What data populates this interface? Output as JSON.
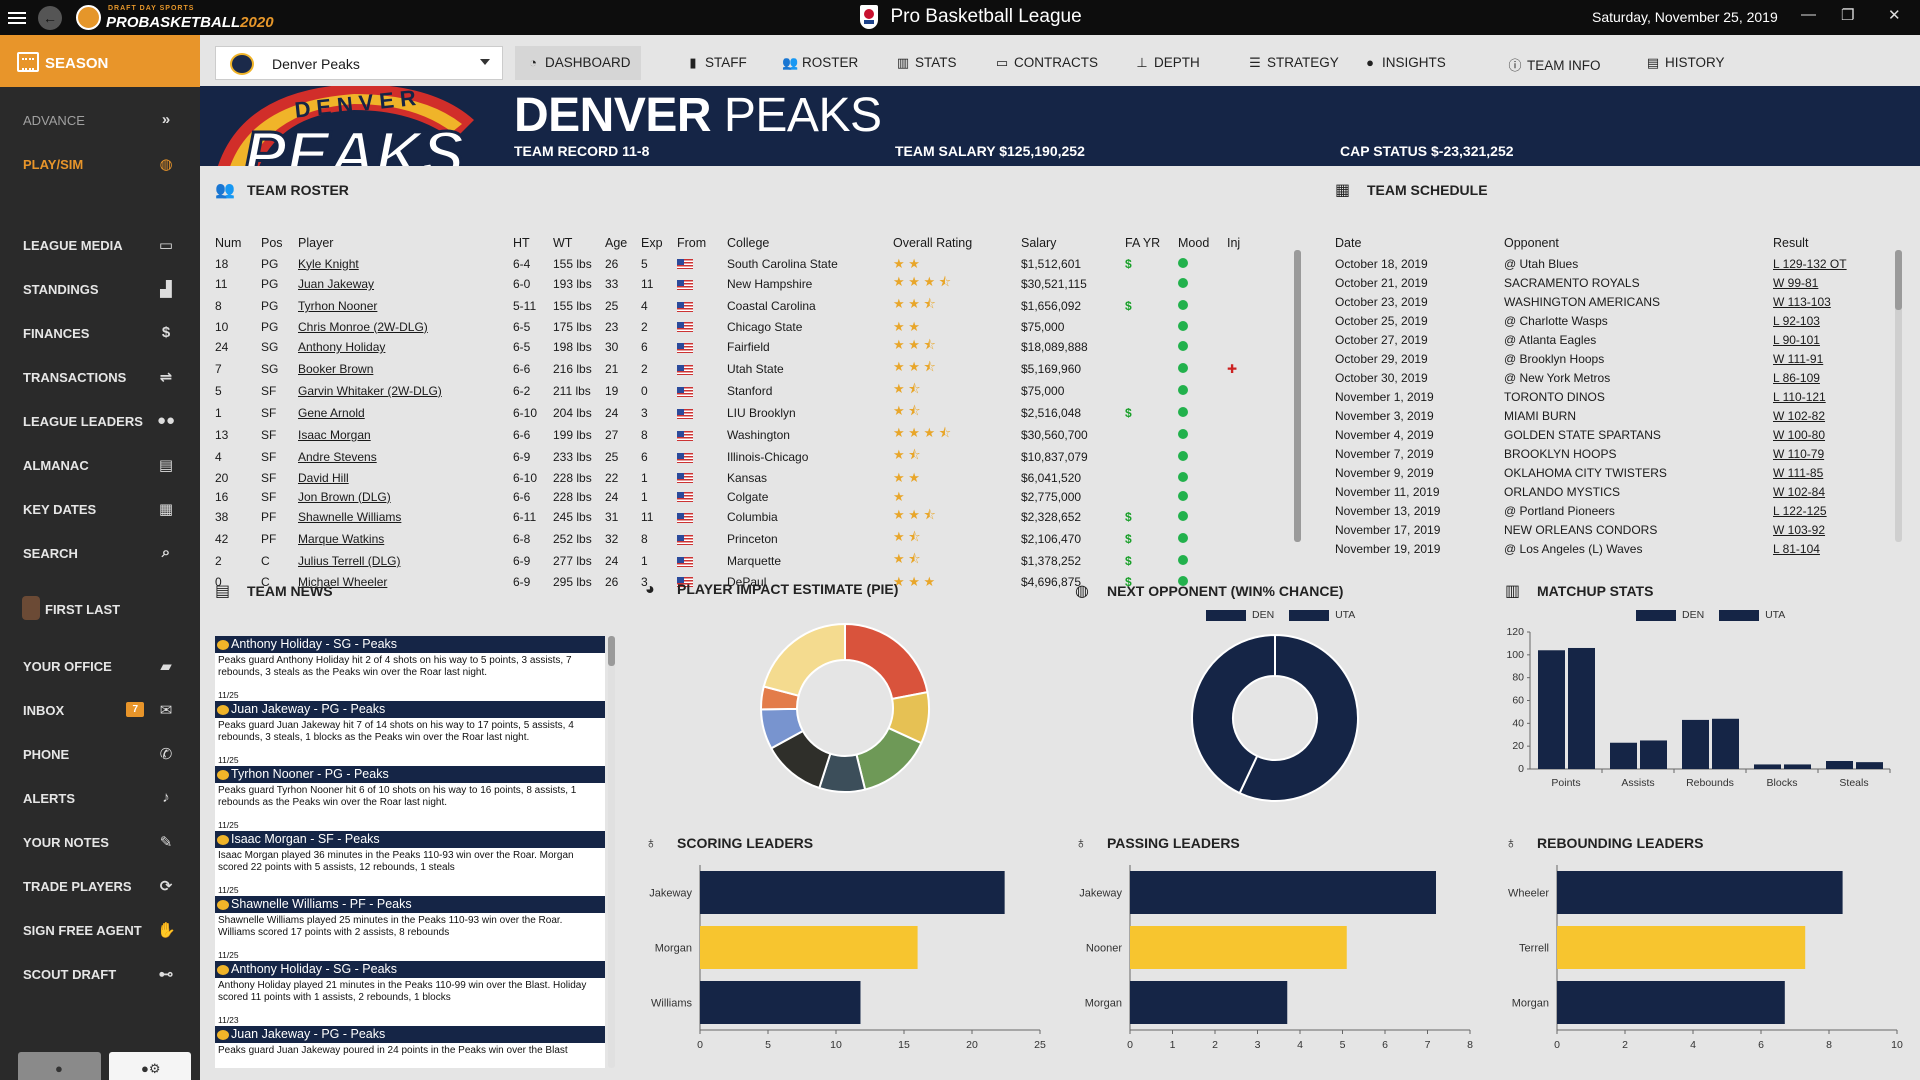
{
  "app": {
    "league_title": "Pro Basketball League",
    "date": "Saturday, November 25, 2019",
    "logo_small": "DRAFT DAY SPORTS",
    "logo_large_1": "PROBASKETBALL",
    "logo_large_2": "2020"
  },
  "sidebar": {
    "season": "SEASON",
    "advance": "ADVANCE",
    "playsim": "PLAY/SIM",
    "items": [
      {
        "label": "LEAGUE MEDIA",
        "icon": "media-icon"
      },
      {
        "label": "STANDINGS",
        "icon": "standings-icon"
      },
      {
        "label": "FINANCES",
        "icon": "dollar-icon"
      },
      {
        "label": "TRANSACTIONS",
        "icon": "transactions-icon"
      },
      {
        "label": "LEAGUE LEADERS",
        "icon": "leaders-icon"
      },
      {
        "label": "ALMANAC",
        "icon": "almanac-icon"
      },
      {
        "label": "KEY DATES",
        "icon": "calendar-icon"
      },
      {
        "label": "SEARCH",
        "icon": "search-icon"
      }
    ],
    "user_name": "FIRST LAST",
    "user_items": [
      {
        "label": "YOUR OFFICE",
        "icon": "briefcase-icon"
      },
      {
        "label": "INBOX",
        "icon": "mail-icon",
        "badge": "7"
      },
      {
        "label": "PHONE",
        "icon": "phone-icon"
      },
      {
        "label": "ALERTS",
        "icon": "bell-icon"
      },
      {
        "label": "YOUR NOTES",
        "icon": "notes-icon"
      },
      {
        "label": "TRADE PLAYERS",
        "icon": "trade-icon"
      },
      {
        "label": "SIGN FREE AGENT",
        "icon": "handshake-icon"
      },
      {
        "label": "SCOUT DRAFT",
        "icon": "binoculars-icon"
      }
    ]
  },
  "team_select": {
    "value": "Denver Peaks"
  },
  "nav": [
    {
      "label": "DASHBOARD",
      "icon": "dashboard-icon",
      "glyph": "◔",
      "active": true
    },
    {
      "label": "STAFF",
      "icon": "staff-icon",
      "glyph": "▮"
    },
    {
      "label": "ROSTER",
      "icon": "roster-icon",
      "glyph": "👥"
    },
    {
      "label": "STATS",
      "icon": "stats-icon",
      "glyph": "▥"
    },
    {
      "label": "CONTRACTS",
      "icon": "contracts-icon",
      "glyph": "▭"
    },
    {
      "label": "DEPTH",
      "icon": "depth-icon",
      "glyph": "⊥"
    },
    {
      "label": "STRATEGY",
      "icon": "strategy-icon",
      "glyph": "☰"
    },
    {
      "label": "INSIGHTS",
      "icon": "insights-icon",
      "glyph": "●"
    },
    {
      "label": "TEAM INFO",
      "icon": "info-icon",
      "glyph": "ⓘ"
    },
    {
      "label": "HISTORY",
      "icon": "history-icon",
      "glyph": "▤"
    }
  ],
  "banner": {
    "city": "DENVER",
    "name": "PEAKS",
    "logo_top": "DENVER",
    "logo_bottom": "PEAKS",
    "record": "TEAM RECORD 11-8",
    "salary": "TEAM SALARY $125,190,252",
    "cap": "CAP STATUS $-23,321,252"
  },
  "roster": {
    "title": "TEAM ROSTER",
    "headers": [
      "Num",
      "Pos",
      "Player",
      "HT",
      "WT",
      "Age",
      "Exp",
      "From",
      "College",
      "Overall Rating",
      "Salary",
      "FA YR",
      "Mood",
      "Inj"
    ],
    "rows": [
      {
        "num": "18",
        "pos": "PG",
        "player": "Kyle Knight",
        "ht": "6-4",
        "wt": "155 lbs",
        "age": "26",
        "exp": "5",
        "college": "South Carolina State",
        "stars": "★ ★",
        "salary": "$1,512,601",
        "fa": "$",
        "inj": ""
      },
      {
        "num": "11",
        "pos": "PG",
        "player": "Juan Jakeway",
        "ht": "6-0",
        "wt": "193 lbs",
        "age": "33",
        "exp": "11",
        "college": "New Hampshire",
        "stars": "★ ★ ★ ⯪",
        "salary": "$30,521,115",
        "fa": "",
        "inj": ""
      },
      {
        "num": "8",
        "pos": "PG",
        "player": "Tyrhon Nooner",
        "ht": "5-11",
        "wt": "155 lbs",
        "age": "25",
        "exp": "4",
        "college": "Coastal Carolina",
        "stars": "★ ★ ⯪",
        "salary": "$1,656,092",
        "fa": "$",
        "inj": ""
      },
      {
        "num": "10",
        "pos": "PG",
        "player": "Chris Monroe (2W-DLG)",
        "ht": "6-5",
        "wt": "175 lbs",
        "age": "23",
        "exp": "2",
        "college": "Chicago State",
        "stars": "★ ★",
        "salary": "$75,000",
        "fa": "",
        "inj": ""
      },
      {
        "num": "24",
        "pos": "SG",
        "player": "Anthony Holiday",
        "ht": "6-5",
        "wt": "198 lbs",
        "age": "30",
        "exp": "6",
        "college": "Fairfield",
        "stars": "★ ★ ⯪",
        "salary": "$18,089,888",
        "fa": "",
        "inj": ""
      },
      {
        "num": "7",
        "pos": "SG",
        "player": "Booker Brown",
        "ht": "6-6",
        "wt": "216 lbs",
        "age": "21",
        "exp": "2",
        "college": "Utah State",
        "stars": "★ ★ ⯪",
        "salary": "$5,169,960",
        "fa": "",
        "inj": "✚"
      },
      {
        "num": "5",
        "pos": "SF",
        "player": "Garvin Whitaker (2W-DLG)",
        "ht": "6-2",
        "wt": "211 lbs",
        "age": "19",
        "exp": "0",
        "college": "Stanford",
        "stars": "★ ⯪",
        "salary": "$75,000",
        "fa": "",
        "inj": ""
      },
      {
        "num": "1",
        "pos": "SF",
        "player": "Gene Arnold",
        "ht": "6-10",
        "wt": "204 lbs",
        "age": "24",
        "exp": "3",
        "college": "LIU Brooklyn",
        "stars": "★ ⯪",
        "salary": "$2,516,048",
        "fa": "$",
        "inj": ""
      },
      {
        "num": "13",
        "pos": "SF",
        "player": "Isaac Morgan",
        "ht": "6-6",
        "wt": "199 lbs",
        "age": "27",
        "exp": "8",
        "college": "Washington",
        "stars": "★ ★ ★ ⯪",
        "salary": "$30,560,700",
        "fa": "",
        "inj": ""
      },
      {
        "num": "4",
        "pos": "SF",
        "player": "Andre Stevens",
        "ht": "6-9",
        "wt": "233 lbs",
        "age": "25",
        "exp": "6",
        "college": "Illinois-Chicago",
        "stars": "★ ⯪",
        "salary": "$10,837,079",
        "fa": "",
        "inj": ""
      },
      {
        "num": "20",
        "pos": "SF",
        "player": "David Hill",
        "ht": "6-10",
        "wt": "228 lbs",
        "age": "22",
        "exp": "1",
        "college": "Kansas",
        "stars": "★ ★",
        "salary": "$6,041,520",
        "fa": "",
        "inj": ""
      },
      {
        "num": "16",
        "pos": "SF",
        "player": "Jon Brown (DLG)",
        "ht": "6-6",
        "wt": "228 lbs",
        "age": "24",
        "exp": "1",
        "college": "Colgate",
        "stars": "★",
        "salary": "$2,775,000",
        "fa": "",
        "inj": ""
      },
      {
        "num": "38",
        "pos": "PF",
        "player": "Shawnelle Williams",
        "ht": "6-11",
        "wt": "245 lbs",
        "age": "31",
        "exp": "11",
        "college": "Columbia",
        "stars": "★ ★ ⯪",
        "salary": "$2,328,652",
        "fa": "$",
        "inj": ""
      },
      {
        "num": "42",
        "pos": "PF",
        "player": "Marque Watkins",
        "ht": "6-8",
        "wt": "252 lbs",
        "age": "32",
        "exp": "8",
        "college": "Princeton",
        "stars": "★ ⯪",
        "salary": "$2,106,470",
        "fa": "$",
        "inj": ""
      },
      {
        "num": "2",
        "pos": "C",
        "player": "Julius Terrell (DLG)",
        "ht": "6-9",
        "wt": "277 lbs",
        "age": "24",
        "exp": "1",
        "college": "Marquette",
        "stars": "★ ⯪",
        "salary": "$1,378,252",
        "fa": "$",
        "inj": ""
      },
      {
        "num": "0",
        "pos": "C",
        "player": "Michael Wheeler",
        "ht": "6-9",
        "wt": "295 lbs",
        "age": "26",
        "exp": "3",
        "college": "DePaul",
        "stars": "★ ★ ★",
        "salary": "$4,696,875",
        "fa": "$",
        "inj": ""
      }
    ]
  },
  "schedule": {
    "title": "TEAM SCHEDULE",
    "headers": [
      "Date",
      "Opponent",
      "Result"
    ],
    "rows": [
      {
        "date": "October 18, 2019",
        "opp": "@ Utah Blues",
        "res": "L 129-132 OT"
      },
      {
        "date": "October 21, 2019",
        "opp": "SACRAMENTO ROYALS",
        "res": "W 99-81"
      },
      {
        "date": "October 23, 2019",
        "opp": "WASHINGTON AMERICANS",
        "res": "W 113-103"
      },
      {
        "date": "October 25, 2019",
        "opp": "@ Charlotte Wasps",
        "res": "L 92-103"
      },
      {
        "date": "October 27, 2019",
        "opp": "@ Atlanta Eagles",
        "res": "L 90-101"
      },
      {
        "date": "October 29, 2019",
        "opp": "@ Brooklyn Hoops",
        "res": "W 111-91"
      },
      {
        "date": "October 30, 2019",
        "opp": "@ New York Metros",
        "res": "L 86-109"
      },
      {
        "date": "November 1, 2019",
        "opp": "TORONTO DINOS",
        "res": "L 110-121"
      },
      {
        "date": "November 3, 2019",
        "opp": "MIAMI BURN",
        "res": "W 102-82"
      },
      {
        "date": "November 4, 2019",
        "opp": "GOLDEN STATE SPARTANS",
        "res": "W 100-80"
      },
      {
        "date": "November 7, 2019",
        "opp": "BROOKLYN HOOPS",
        "res": "W 110-79"
      },
      {
        "date": "November 9, 2019",
        "opp": "OKLAHOMA CITY TWISTERS",
        "res": "W 111-85"
      },
      {
        "date": "November 11, 2019",
        "opp": "ORLANDO MYSTICS",
        "res": "W 102-84"
      },
      {
        "date": "November 13, 2019",
        "opp": "@ Portland Pioneers",
        "res": "L 122-125"
      },
      {
        "date": "November 17, 2019",
        "opp": "NEW ORLEANS CONDORS",
        "res": "W 103-92"
      },
      {
        "date": "November 19, 2019",
        "opp": "@ Los Angeles (L) Waves",
        "res": "L 81-104"
      }
    ]
  },
  "news": {
    "title": "TEAM NEWS",
    "items": [
      {
        "head": "Anthony Holiday - SG - Peaks",
        "body": "Peaks guard Anthony Holiday hit 2 of 4 shots on his way to 5 points, 3 assists, 7 rebounds, 3 steals as the Peaks win over the Roar last night.",
        "date": "11/25"
      },
      {
        "head": "Juan Jakeway - PG - Peaks",
        "body": "Peaks guard Juan Jakeway hit 7 of 14 shots on his way to 17 points, 5 assists, 4 rebounds, 3 steals, 1 blocks as the Peaks win over the Roar last night.",
        "date": "11/25"
      },
      {
        "head": "Tyrhon Nooner - PG - Peaks",
        "body": "Peaks guard Tyrhon Nooner hit 6 of 10 shots on his way to 16 points, 8 assists, 1 rebounds as the Peaks win over the Roar last night.",
        "date": "11/25"
      },
      {
        "head": "Isaac Morgan - SF - Peaks",
        "body": "Isaac Morgan played 36 minutes in the Peaks 110-93 win over the Roar. Morgan scored 22 points with 5 assists, 12 rebounds, 1 steals",
        "date": "11/25"
      },
      {
        "head": "Shawnelle Williams - PF - Peaks",
        "body": "Shawnelle Williams played 25 minutes in the Peaks 110-93 win over the Roar. Williams scored 17 points with 2 assists, 8 rebounds",
        "date": "11/25"
      },
      {
        "head": "Anthony Holiday - SG - Peaks",
        "body": "Anthony Holiday played 21 minutes in the Peaks 110-99 win over the Blast. Holiday scored 11 points with 1 assists, 2 rebounds, 1 blocks",
        "date": "11/23"
      },
      {
        "head": "Juan Jakeway - PG - Peaks",
        "body": "Peaks guard Juan Jakeway poured in 24 points in the Peaks win over the Blast",
        "date": ""
      }
    ]
  },
  "pie": {
    "title": "PLAYER IMPACT ESTIMATE (PIE)",
    "chart_data": {
      "type": "pie",
      "values": [
        20,
        9,
        13,
        8,
        11,
        7,
        4,
        19
      ],
      "colors": [
        "#d9533c",
        "#e6c154",
        "#6e9957",
        "#3c4e5a",
        "#2f2f2a",
        "#7894cf",
        "#e37c4a",
        "#f4db8f"
      ]
    }
  },
  "next_opp": {
    "title": "NEXT OPPONENT (WIN% CHANCE)",
    "legend": [
      "DEN",
      "UTA"
    ],
    "chart_data": {
      "type": "pie",
      "series": [
        {
          "name": "DEN",
          "values": [
            57
          ]
        },
        {
          "name": "UTA",
          "values": [
            43
          ]
        }
      ]
    }
  },
  "matchup": {
    "title": "MATCHUP STATS",
    "legend": [
      "DEN",
      "UTA"
    ],
    "chart_data": {
      "type": "bar",
      "categories": [
        "Points",
        "Assists",
        "Rebounds",
        "Blocks",
        "Steals"
      ],
      "series": [
        {
          "name": "DEN",
          "values": [
            104,
            23,
            43,
            4,
            7
          ]
        },
        {
          "name": "UTA",
          "values": [
            106,
            25,
            44,
            4,
            6
          ]
        }
      ],
      "ylim": [
        0,
        120
      ],
      "yticks": [
        0,
        20,
        40,
        60,
        80,
        100,
        120
      ]
    }
  },
  "scoring": {
    "title": "SCORING LEADERS",
    "chart_data": {
      "type": "bar",
      "categories": [
        "Jakeway",
        "Morgan",
        "Williams"
      ],
      "values": [
        22.4,
        16.0,
        11.8
      ],
      "xlim": [
        0,
        25
      ],
      "xticks": [
        0,
        5,
        10,
        15,
        20,
        25
      ],
      "highlight": 1
    }
  },
  "passing": {
    "title": "PASSING LEADERS",
    "chart_data": {
      "type": "bar",
      "categories": [
        "Jakeway",
        "Nooner",
        "Morgan"
      ],
      "values": [
        7.2,
        5.1,
        3.7
      ],
      "xlim": [
        0,
        8
      ],
      "xticks": [
        0,
        1,
        2,
        3,
        4,
        5,
        6,
        7,
        8
      ],
      "highlight": 1
    }
  },
  "rebounding": {
    "title": "REBOUNDING LEADERS",
    "chart_data": {
      "type": "bar",
      "categories": [
        "Wheeler",
        "Terrell",
        "Morgan"
      ],
      "values": [
        8.4,
        7.3,
        6.7
      ],
      "xlim": [
        0,
        10
      ],
      "xticks": [
        0,
        2,
        4,
        6,
        8,
        10
      ],
      "highlight": 1
    }
  },
  "colors": {
    "navy": "#152546",
    "accent": "#e8952a",
    "highlight": "#f7c52f"
  }
}
